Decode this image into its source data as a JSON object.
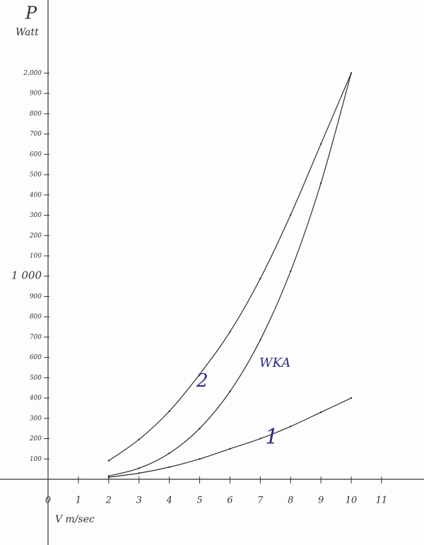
{
  "chart_data": {
    "type": "line",
    "y_label": "P",
    "y_unit": "Watt",
    "x_label": "V m/sec",
    "x": [
      2,
      3,
      4,
      5,
      6,
      7,
      8,
      9,
      10
    ],
    "series": [
      {
        "name": "2",
        "color": "#2b2b2b",
        "values": [
          91,
          196,
          335,
          517,
          726,
          988,
          1302,
          1651,
          2000
        ]
      },
      {
        "name": "WKA",
        "color": "#2b2b2b",
        "values": [
          16,
          54,
          128,
          250,
          432,
          686,
          1024,
          1458,
          2000
        ]
      },
      {
        "name": "1",
        "color": "#2b2b2b",
        "values": [
          10,
          30,
          60,
          100,
          150,
          200,
          260,
          330,
          400
        ]
      }
    ],
    "label_color": "#2c2c86",
    "xlim": [
      0,
      12.4
    ],
    "ylim": [
      0,
      2360
    ],
    "xticks": [
      0,
      1,
      2,
      3,
      4,
      5,
      6,
      7,
      8,
      9,
      10,
      11
    ],
    "yticks": [
      100,
      200,
      300,
      400,
      500,
      600,
      700,
      800,
      900,
      {
        "value": 1000,
        "label": "1 000"
      },
      {
        "value": 1100,
        "label": "100"
      },
      {
        "value": 1200,
        "label": "200"
      },
      {
        "value": 1300,
        "label": "300"
      },
      {
        "value": 1400,
        "label": "400"
      },
      {
        "value": 1500,
        "label": "500"
      },
      {
        "value": 1600,
        "label": "600"
      },
      {
        "value": 1700,
        "label": "700"
      },
      {
        "value": 1800,
        "label": "800"
      },
      {
        "value": 1900,
        "label": "900"
      },
      {
        "value": 2000,
        "label": "2,000"
      }
    ],
    "grid": false
  }
}
